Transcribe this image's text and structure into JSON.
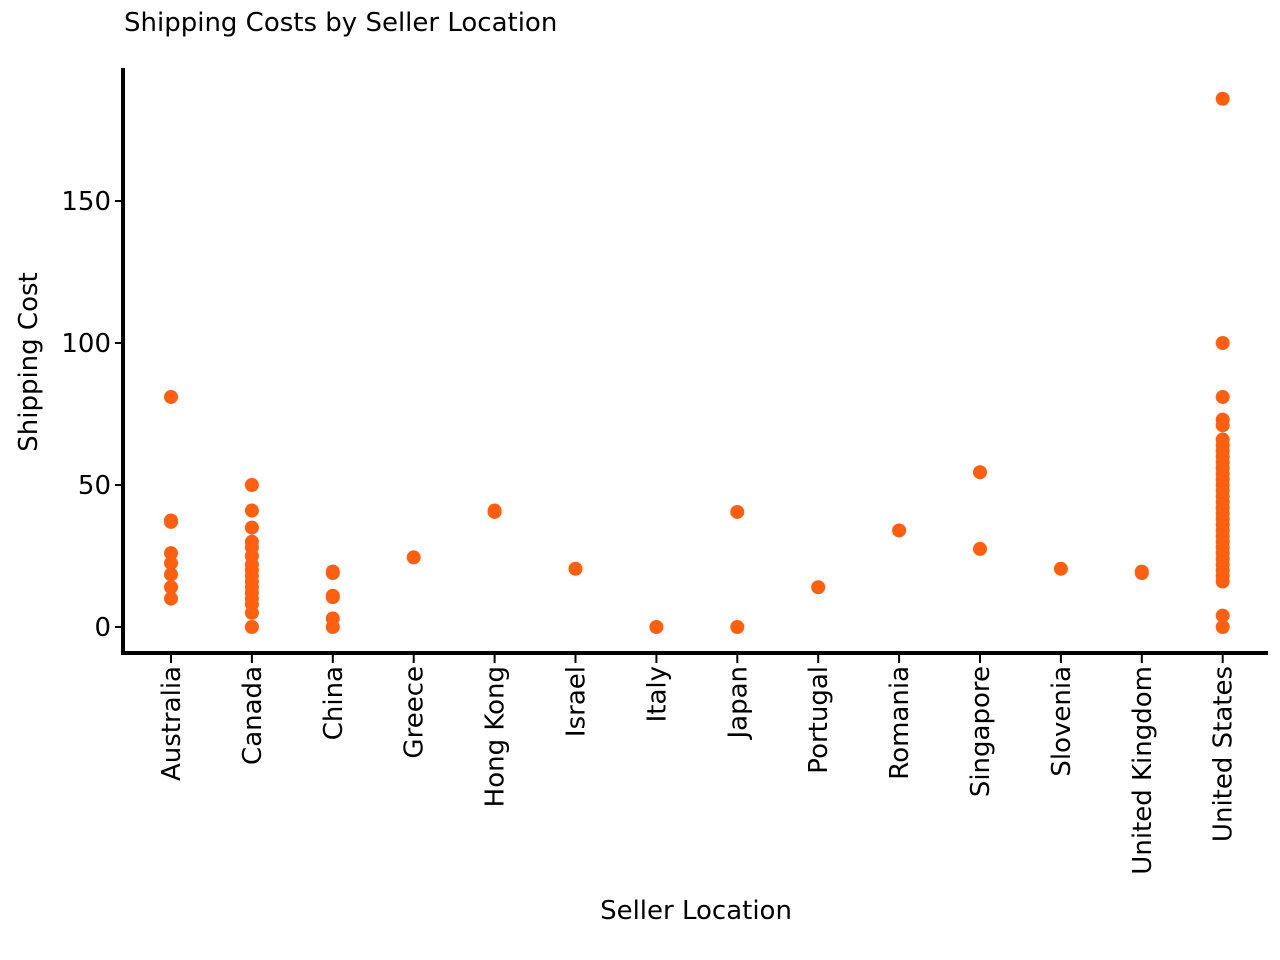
{
  "chart_data": {
    "type": "scatter",
    "title": "Shipping Costs by Seller Location",
    "xlabel": "Seller Location",
    "ylabel": "Shipping Cost",
    "categories": [
      "Australia",
      "Canada",
      "China",
      "Greece",
      "Hong Kong",
      "Israel",
      "Italy",
      "Japan",
      "Portugal",
      "Romania",
      "Singapore",
      "Slovenia",
      "United Kingdom",
      "United States"
    ],
    "y_ticks": [
      0,
      50,
      100,
      150
    ],
    "ylim": [
      -9,
      196
    ],
    "grid": false,
    "marker_color": "#ff5f0f",
    "points": [
      {
        "x": "Australia",
        "y": 81
      },
      {
        "x": "Australia",
        "y": 37.5
      },
      {
        "x": "Australia",
        "y": 37
      },
      {
        "x": "Australia",
        "y": 26
      },
      {
        "x": "Australia",
        "y": 22.5
      },
      {
        "x": "Australia",
        "y": 18.5
      },
      {
        "x": "Australia",
        "y": 14
      },
      {
        "x": "Australia",
        "y": 10
      },
      {
        "x": "Canada",
        "y": 50
      },
      {
        "x": "Canada",
        "y": 41
      },
      {
        "x": "Canada",
        "y": 35
      },
      {
        "x": "Canada",
        "y": 30
      },
      {
        "x": "Canada",
        "y": 28
      },
      {
        "x": "Canada",
        "y": 25
      },
      {
        "x": "Canada",
        "y": 22
      },
      {
        "x": "Canada",
        "y": 20
      },
      {
        "x": "Canada",
        "y": 18
      },
      {
        "x": "Canada",
        "y": 16
      },
      {
        "x": "Canada",
        "y": 14
      },
      {
        "x": "Canada",
        "y": 12
      },
      {
        "x": "Canada",
        "y": 10
      },
      {
        "x": "Canada",
        "y": 8
      },
      {
        "x": "Canada",
        "y": 5
      },
      {
        "x": "Canada",
        "y": 0
      },
      {
        "x": "China",
        "y": 19.5
      },
      {
        "x": "China",
        "y": 19
      },
      {
        "x": "China",
        "y": 11
      },
      {
        "x": "China",
        "y": 10.5
      },
      {
        "x": "China",
        "y": 3
      },
      {
        "x": "China",
        "y": 0
      },
      {
        "x": "Greece",
        "y": 24.5
      },
      {
        "x": "Hong Kong",
        "y": 40.5
      },
      {
        "x": "Hong Kong",
        "y": 41
      },
      {
        "x": "Israel",
        "y": 20.5
      },
      {
        "x": "Italy",
        "y": 0
      },
      {
        "x": "Japan",
        "y": 40.5
      },
      {
        "x": "Japan",
        "y": 0
      },
      {
        "x": "Portugal",
        "y": 14
      },
      {
        "x": "Romania",
        "y": 34
      },
      {
        "x": "Singapore",
        "y": 54.5
      },
      {
        "x": "Singapore",
        "y": 27.5
      },
      {
        "x": "Slovenia",
        "y": 20.5
      },
      {
        "x": "United Kingdom",
        "y": 19.5
      },
      {
        "x": "United Kingdom",
        "y": 19
      },
      {
        "x": "United States",
        "y": 186
      },
      {
        "x": "United States",
        "y": 100
      },
      {
        "x": "United States",
        "y": 81
      },
      {
        "x": "United States",
        "y": 73
      },
      {
        "x": "United States",
        "y": 71
      },
      {
        "x": "United States",
        "y": 66
      },
      {
        "x": "United States",
        "y": 64
      },
      {
        "x": "United States",
        "y": 62
      },
      {
        "x": "United States",
        "y": 60
      },
      {
        "x": "United States",
        "y": 58
      },
      {
        "x": "United States",
        "y": 56
      },
      {
        "x": "United States",
        "y": 54
      },
      {
        "x": "United States",
        "y": 52
      },
      {
        "x": "United States",
        "y": 50
      },
      {
        "x": "United States",
        "y": 48
      },
      {
        "x": "United States",
        "y": 46
      },
      {
        "x": "United States",
        "y": 44
      },
      {
        "x": "United States",
        "y": 42
      },
      {
        "x": "United States",
        "y": 40
      },
      {
        "x": "United States",
        "y": 38
      },
      {
        "x": "United States",
        "y": 36
      },
      {
        "x": "United States",
        "y": 34
      },
      {
        "x": "United States",
        "y": 32
      },
      {
        "x": "United States",
        "y": 30
      },
      {
        "x": "United States",
        "y": 28
      },
      {
        "x": "United States",
        "y": 26
      },
      {
        "x": "United States",
        "y": 24
      },
      {
        "x": "United States",
        "y": 22
      },
      {
        "x": "United States",
        "y": 20
      },
      {
        "x": "United States",
        "y": 18
      },
      {
        "x": "United States",
        "y": 16
      },
      {
        "x": "United States",
        "y": 4
      },
      {
        "x": "United States",
        "y": 0
      }
    ]
  }
}
